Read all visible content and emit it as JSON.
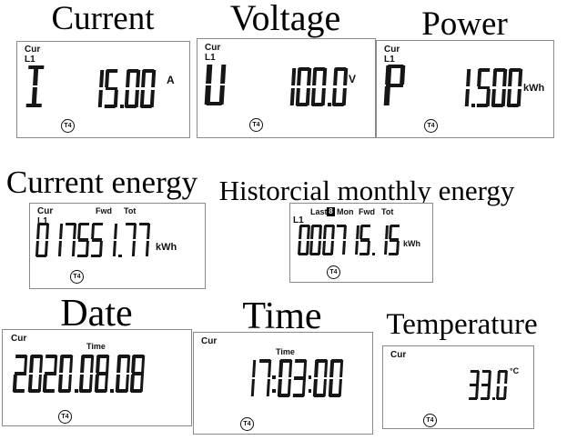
{
  "colors": {
    "segment": "#161616",
    "lcd_border": "#8a8a8a",
    "background": "#ffffff"
  },
  "panels": {
    "current": {
      "title": "Current",
      "lcd": {
        "mode": "Cur",
        "phase": "L1",
        "symbol": "I",
        "value": "15.00",
        "unit": "A",
        "tariff": "T4"
      }
    },
    "voltage": {
      "title": "Voltage",
      "lcd": {
        "mode": "Cur",
        "phase": "L1",
        "symbol": "U",
        "value": "100.0",
        "unit": "V",
        "tariff": "T4"
      }
    },
    "power": {
      "title": "Power",
      "lcd": {
        "mode": "Cur",
        "phase": "L1",
        "symbol": "P",
        "value": "1.500",
        "unit": "kWh",
        "tariff": "T4"
      }
    },
    "current_energy": {
      "title": "Current energy",
      "lcd": {
        "mode": "Cur",
        "phase": "L1",
        "direction": "Fwd",
        "total": "Tot",
        "value": "017551.77",
        "unit": "kWh",
        "tariff": "T4"
      }
    },
    "historical_monthly_energy": {
      "title": "Historcial monthly energy",
      "lcd": {
        "phase": "L1",
        "last": "Last",
        "month_index": "8",
        "month": "Mon",
        "direction": "Fwd",
        "total": "Tot",
        "value": "000715.15",
        "unit": "kWh",
        "tariff": "T4"
      }
    },
    "date": {
      "title": "Date",
      "lcd": {
        "mode": "Cur",
        "screen_label": "Time",
        "value": "2020.08.08",
        "tariff": "T4"
      }
    },
    "time": {
      "title": "Time",
      "lcd": {
        "mode": "Cur",
        "screen_label": "Time",
        "value": "17:03:00",
        "tariff": "T4"
      }
    },
    "temperature": {
      "title": "Temperature",
      "lcd": {
        "mode": "Cur",
        "value": "33.0",
        "unit": "°C",
        "tariff": "T4"
      }
    }
  }
}
